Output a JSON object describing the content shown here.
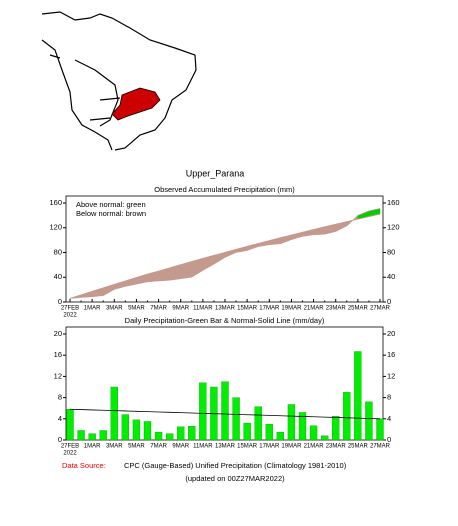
{
  "title": "Upper_Parana",
  "chart_data": [
    {
      "type": "area-diff",
      "title": "Observed Accumulated Precipitation (mm)",
      "annotations": [
        "Above normal: green",
        "Below normal: brown"
      ],
      "above_color": "#00cc00",
      "below_color": "#c49a8f",
      "categories": [
        "27FEB",
        null,
        "1MAR",
        null,
        "3MAR",
        null,
        "5MAR",
        null,
        "7MAR",
        null,
        "9MAR",
        null,
        "11MAR",
        null,
        "13MAR",
        null,
        "15MAR",
        null,
        "17MAR",
        null,
        "19MAR",
        null,
        "21MAR",
        null,
        "23MAR",
        null,
        "25MAR",
        null,
        "27MAR"
      ],
      "year_label": "2022",
      "series": [
        {
          "values": [
            5.8,
            7.6,
            8.8,
            10.6,
            20.6,
            25.4,
            29.2,
            32.7,
            34.2,
            35.4,
            37.9,
            40.5,
            51.3,
            61.3,
            72.3,
            80.3,
            83.5,
            89.8,
            92.8,
            94.3,
            101,
            106.2,
            108.9,
            109.7,
            114.2,
            123.2,
            139.9,
            147.1,
            151.1
          ]
        },
        {
          "values": [
            5.8,
            11.5,
            17.2,
            22.8,
            28.5,
            34,
            39.6,
            45.1,
            49.9,
            55.1,
            60.3,
            65.4,
            70.4,
            75.3,
            80.2,
            85.1,
            89.9,
            94.6,
            99.2,
            103.8,
            108.3,
            112.7,
            117.1,
            121.5,
            125.7,
            129.9,
            134,
            138.1,
            142.1
          ]
        }
      ],
      "ylim": [
        0,
        160
      ],
      "yticks": [
        0,
        40,
        80,
        120,
        160
      ]
    },
    {
      "type": "bar-line",
      "title": "Daily Precipitation-Green Bar & Normal-Solid Line (mm/day)",
      "categories": [
        "27FEB",
        null,
        "1MAR",
        null,
        "3MAR",
        null,
        "5MAR",
        null,
        "7MAR",
        null,
        "9MAR",
        null,
        "11MAR",
        null,
        "13MAR",
        null,
        "15MAR",
        null,
        "17MAR",
        null,
        "19MAR",
        null,
        "21MAR",
        null,
        "23MAR",
        null,
        "25MAR",
        null,
        "27MAR"
      ],
      "year_label": "2022",
      "series": [
        {
          "color": "#00ee00",
          "values": [
            5.8,
            1.8,
            1.2,
            1.8,
            10,
            4.8,
            3.8,
            3.5,
            1.5,
            1.2,
            2.5,
            2.6,
            10.8,
            10,
            11,
            8,
            3.2,
            6.3,
            3,
            1.5,
            6.7,
            5.2,
            2.7,
            0.8,
            4.5,
            9,
            16.7,
            7.2,
            4
          ]
        },
        {
          "color": "#000000",
          "values": [
            5.8,
            5.74,
            5.67,
            5.61,
            5.54,
            5.48,
            5.41,
            5.35,
            5.29,
            5.22,
            5.16,
            5.09,
            5.03,
            4.96,
            4.9,
            4.84,
            4.77,
            4.71,
            4.64,
            4.58,
            4.51,
            4.45,
            4.39,
            4.32,
            4.26,
            4.19,
            4.13,
            4.06,
            4
          ]
        }
      ],
      "ylim": [
        0,
        20
      ],
      "yticks": [
        0,
        4,
        8,
        12,
        16,
        20
      ]
    }
  ],
  "footer": {
    "source_label": "Data Source:",
    "source": "CPC (Gauge-Based) Unified Precipitation (Climatology 1981-2010)",
    "updated": "(updated on 00Z27MAR2022)"
  }
}
